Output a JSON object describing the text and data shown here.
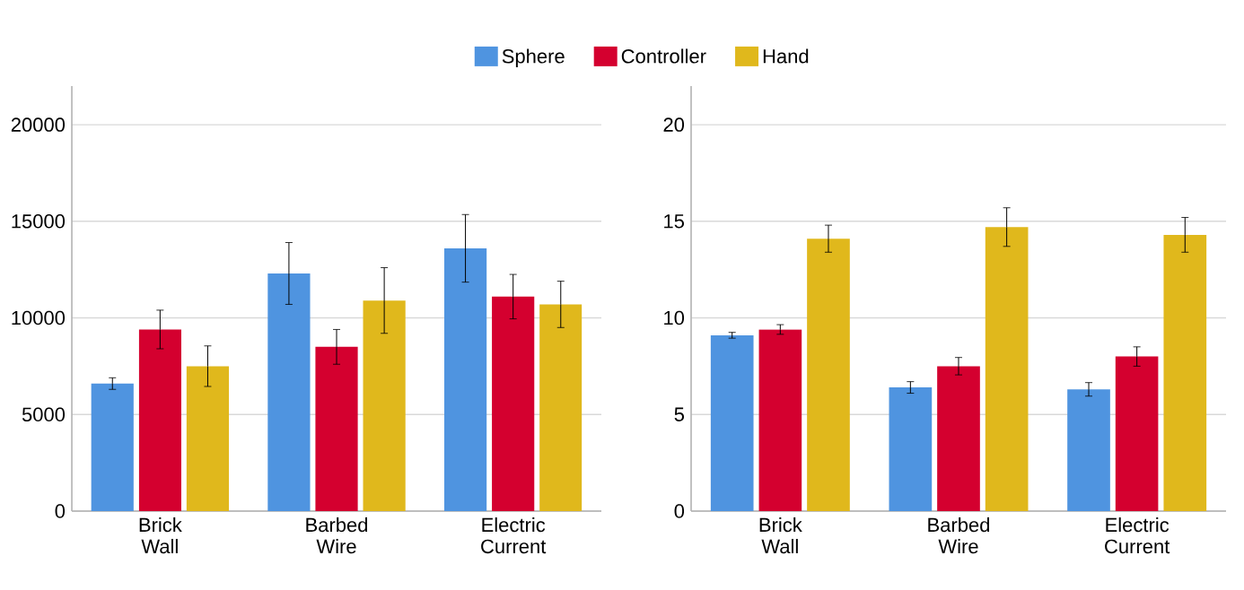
{
  "chart_data": [
    {
      "type": "bar",
      "categories": [
        "Brick Wall",
        "Barbed Wire",
        "Electric Current"
      ],
      "ylim": [
        0,
        22000
      ],
      "yticks": [
        0,
        5000,
        10000,
        15000,
        20000
      ],
      "grid": "y",
      "legend": "top",
      "series": [
        {
          "name": "Sphere",
          "color": "#4f94e0",
          "values": [
            6600,
            12300,
            13600
          ],
          "errors": [
            300,
            1600,
            1750
          ]
        },
        {
          "name": "Controller",
          "color": "#d4002f",
          "values": [
            9400,
            8500,
            11100
          ],
          "errors": [
            1000,
            900,
            1150
          ]
        },
        {
          "name": "Hand",
          "color": "#e0b81c",
          "values": [
            7500,
            10900,
            10700
          ],
          "errors": [
            1050,
            1700,
            1200
          ]
        }
      ]
    },
    {
      "type": "bar",
      "categories": [
        "Brick Wall",
        "Barbed Wire",
        "Electric Current"
      ],
      "ylim": [
        0,
        22
      ],
      "yticks": [
        0,
        5,
        10,
        15,
        20
      ],
      "grid": "y",
      "series": [
        {
          "color": "#4f94e0",
          "values": [
            9.1,
            6.4,
            6.3
          ],
          "errors": [
            0.15,
            0.3,
            0.35
          ]
        },
        {
          "color": "#d4002f",
          "values": [
            9.4,
            7.5,
            8.0
          ],
          "errors": [
            0.25,
            0.45,
            0.5
          ]
        },
        {
          "color": "#e0b81c",
          "values": [
            14.1,
            14.7,
            14.3
          ],
          "errors": [
            0.7,
            1.0,
            0.9
          ]
        }
      ]
    }
  ]
}
